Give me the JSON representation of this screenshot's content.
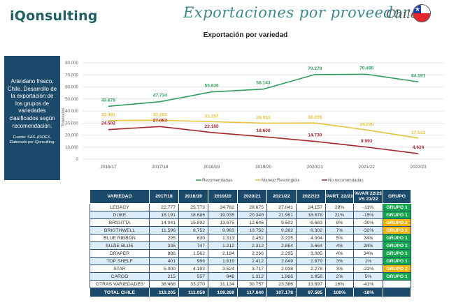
{
  "header": {
    "brand": "iQonsulting",
    "title": "Exportaciones por proveedor",
    "country": "Chile",
    "flag_icon": "chile-flag-icon"
  },
  "subtitle": "Exportación por variedad",
  "side_box": {
    "main_text": "Arándano fresco, Chile. Desarrollo de la exportación de los grupos de variedades clasificados según recomendación.",
    "source_text": "Fuente: SAG-ASOEX. Elaborado por iQonsulting."
  },
  "chart_data": {
    "type": "line",
    "title": "Exportación por variedad",
    "xlabel": "",
    "ylabel": "Toneladas",
    "x": [
      "2016/17",
      "2017/18",
      "2018/19",
      "2019/20",
      "2020/21",
      "2021/22",
      "2022/23"
    ],
    "ylim": [
      0,
      80000
    ],
    "yticks": [
      0,
      10000,
      20000,
      30000,
      40000,
      50000,
      60000,
      70000,
      80000
    ],
    "ytick_labels": [
      "0",
      "10.000",
      "20.000",
      "30.000",
      "40.000",
      "50.000",
      "60.000",
      "70.000",
      "80.000"
    ],
    "grid": true,
    "legend_position": "bottom",
    "series": [
      {
        "name": "Recomendadas",
        "color": "#2e9e5e",
        "values": [
          43878,
          47734,
          55836,
          58143,
          70278,
          70495,
          64191
        ],
        "labels": [
          "43.878",
          "47.734",
          "55.836",
          "58.143",
          "70.278",
          "70.495",
          "64.191"
        ]
      },
      {
        "name": "Manejo Restringido",
        "color": "#e8c23a",
        "values": [
          32081,
          32265,
          31157,
          29913,
          30055,
          24235,
          17512
        ],
        "labels": [
          "32.081",
          "32.265",
          "31.157",
          "29.913",
          "30.055",
          "24.235",
          "17.512"
        ]
      },
      {
        "name": "No recomendadas",
        "color": "#a3262e",
        "values": [
          24502,
          27063,
          22160,
          18600,
          14730,
          9993,
          4624
        ],
        "labels": [
          "24.502",
          "27.063",
          "22.160",
          "18.600",
          "14.730",
          "9.993",
          "4.624"
        ]
      }
    ]
  },
  "table": {
    "headers": [
      "VARIEDAD",
      "2017/18",
      "2018/19",
      "2019/20",
      "2020/21",
      "2021/22",
      "2022/23",
      "PART. 22/23",
      "%VAR 22/23 VS 21/22",
      "GRUPO"
    ],
    "rows": [
      {
        "variedad": "LEGACY",
        "v": [
          "22.777",
          "25.773",
          "24.762",
          "28.675",
          "27.041",
          "24.157"
        ],
        "part": "28%",
        "var": "-11%",
        "grupo": "GRUPO 1",
        "g": 1
      },
      {
        "variedad": "DUKE",
        "v": [
          "16.191",
          "18.686",
          "19.035",
          "20.340",
          "21.961",
          "18.678"
        ],
        "part": "21%",
        "var": "-15%",
        "grupo": "GRUPO 1",
        "g": 1
      },
      {
        "variedad": "BRIGITTA",
        "v": [
          "14.041",
          "15.892",
          "13.675",
          "12.646",
          "9.502",
          "6.683"
        ],
        "part": "8%",
        "var": "-30%",
        "grupo": "GRUPO 2",
        "g": 2
      },
      {
        "variedad": "BRIGTHWELL",
        "v": [
          "11.596",
          "8.752",
          "9.963",
          "10.752",
          "9.262",
          "6.302"
        ],
        "part": "7%",
        "var": "-32%",
        "grupo": "GRUPO 2",
        "g": 2
      },
      {
        "variedad": "BLUE RIBBON",
        "v": [
          "295",
          "630",
          "1.313",
          "2.452",
          "3.225",
          "4.004"
        ],
        "part": "5%",
        "var": "24%",
        "grupo": "GRUPO 1",
        "g": 1
      },
      {
        "variedad": "SUZIE BLUE",
        "v": [
          "335",
          "747",
          "1.212",
          "2.312",
          "2.854",
          "3.664"
        ],
        "part": "4%",
        "var": "28%",
        "grupo": "GRUPO 1",
        "g": 1
      },
      {
        "variedad": "DRAPER",
        "v": [
          "886",
          "1.562",
          "2.184",
          "2.266",
          "2.295",
          "3.085"
        ],
        "part": "4%",
        "var": "34%",
        "grupo": "GRUPO 1",
        "g": 1
      },
      {
        "variedad": "TOP SHELF",
        "v": [
          "401",
          "996",
          "1.619",
          "2.412",
          "2.849",
          "2.879"
        ],
        "part": "3%",
        "var": "1%",
        "grupo": "GRUPO 1",
        "g": 1
      },
      {
        "variedad": "STAR",
        "v": [
          "5.000",
          "4.193",
          "3.524",
          "3.717",
          "2.938",
          "2.278"
        ],
        "part": "3%",
        "var": "-22%",
        "grupo": "GRUPO 2",
        "g": 2
      },
      {
        "variedad": "CARGO",
        "v": [
          "215",
          "557",
          "848",
          "1.312",
          "1.866",
          "1.958"
        ],
        "part": "2%",
        "var": "5%",
        "grupo": "GRUPO 1",
        "g": 1
      },
      {
        "variedad": "OTRAS VARIEDADES",
        "v": [
          "38.468",
          "33.270",
          "31.134",
          "30.757",
          "23.386",
          "13.897"
        ],
        "part": "16%",
        "var": "-41%",
        "grupo": "",
        "g": 0
      }
    ],
    "total": {
      "variedad": "TOTAL CHILE",
      "v": [
        "110.205",
        "111.058",
        "109.269",
        "117.640",
        "107.178",
        "87.585"
      ],
      "part": "100%",
      "var": "-18%",
      "grupo": ""
    }
  }
}
